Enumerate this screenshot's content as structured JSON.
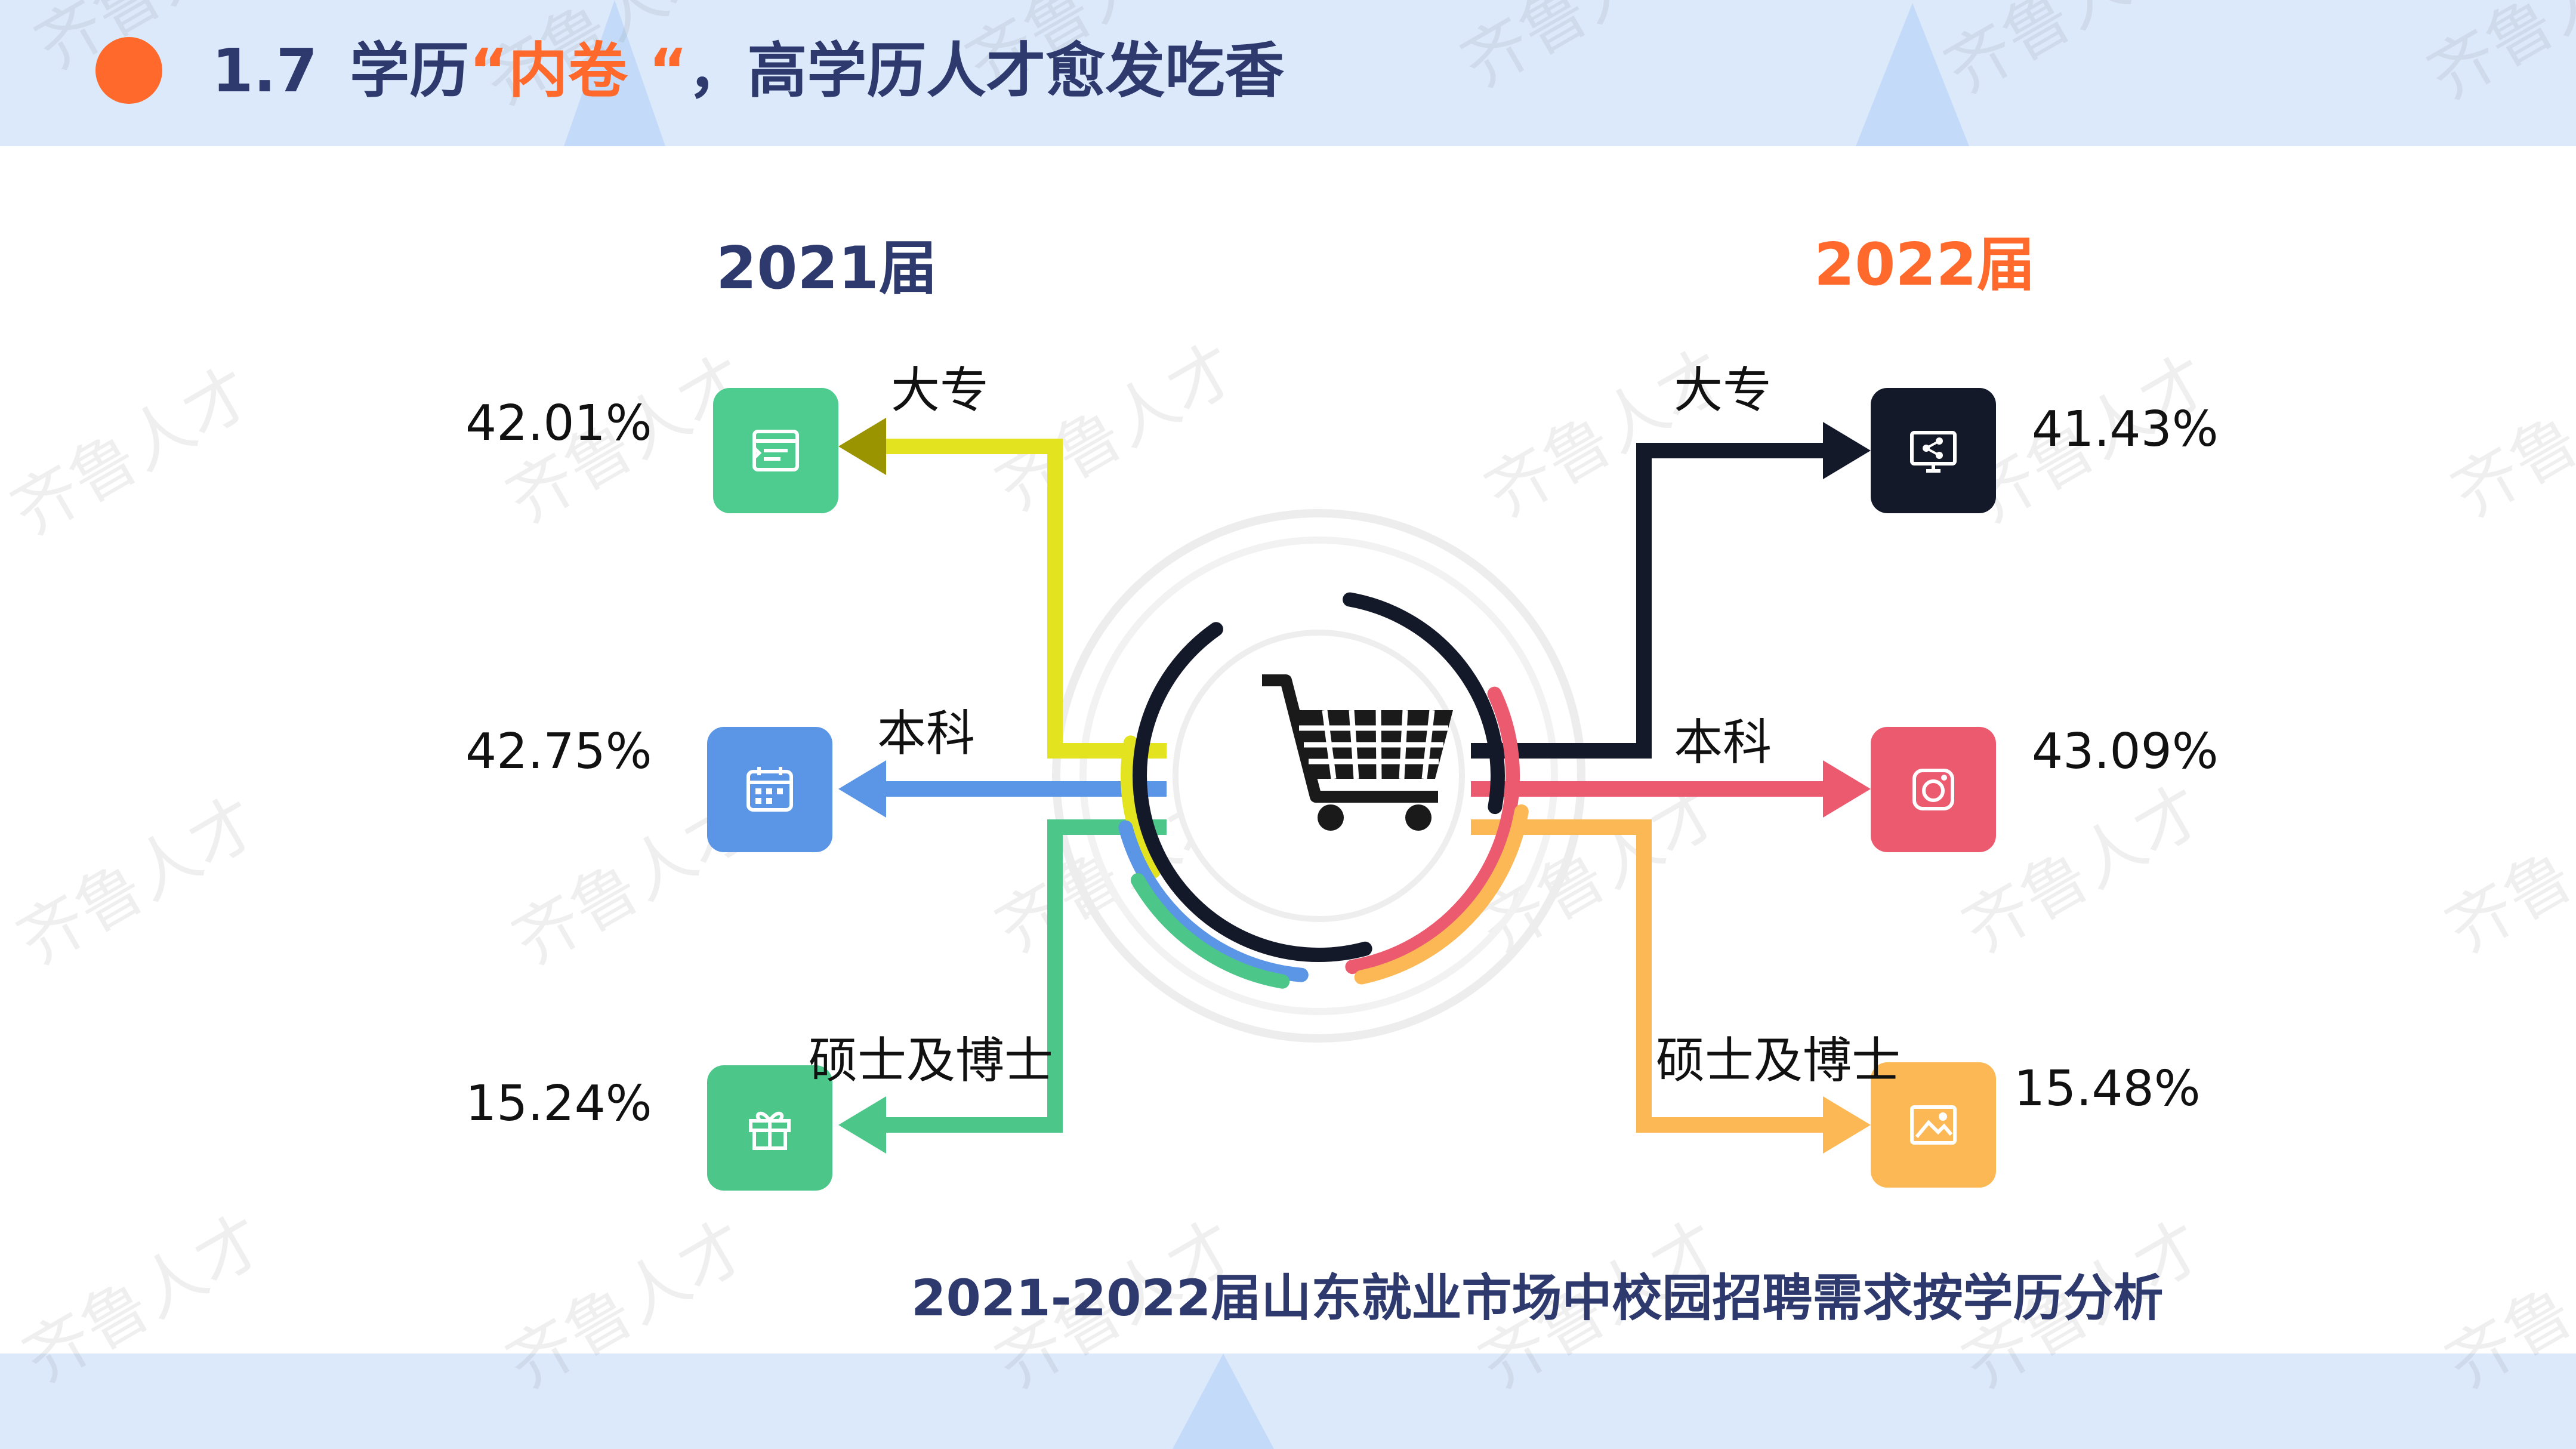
{
  "header": {
    "section_number": "1.7",
    "title_prefix": "学历",
    "title_highlight": "“内卷 “",
    "title_suffix": "，高学历人才愈发吃香"
  },
  "watermark": "齐鲁人才",
  "left": {
    "year": "2021届",
    "items": [
      {
        "label": "大专",
        "value": "42.01%",
        "icon": "document-list-icon"
      },
      {
        "label": "本科",
        "value": "42.75%",
        "icon": "calendar-icon"
      },
      {
        "label": "硕士及博士",
        "value": "15.24%",
        "icon": "gift-icon"
      }
    ]
  },
  "right": {
    "year": "2022届",
    "items": [
      {
        "label": "大专",
        "value": "41.43%",
        "icon": "monitor-share-icon"
      },
      {
        "label": "本科",
        "value": "43.09%",
        "icon": "camera-icon"
      },
      {
        "label": "硕士及博士",
        "value": "15.48%",
        "icon": "image-icon"
      }
    ]
  },
  "center_icon": "shopping-cart-icon",
  "footer": {
    "caption": "2021-2022届山东就业市场中校园招聘需求按学历分析"
  },
  "colors": {
    "navy": "#2e3a6e",
    "orange": "#ff6a2c",
    "band": "#dbe9fb",
    "dazhuan_2021": "#e3e320",
    "dazhuan_2021_arrow": "#9a9400",
    "benke_2021": "#5b96e6",
    "shuobo_2021": "#4cc789",
    "dazhuan_2022": "#14192a",
    "benke_2022": "#ec5a70",
    "shuobo_2022": "#fbb854",
    "tile_green": "#4ecb8f",
    "tile_blue": "#5b96e6",
    "tile_green2": "#4cc789",
    "tile_black": "#14192a",
    "tile_pink": "#ec5a70",
    "tile_orange": "#fbb854"
  }
}
